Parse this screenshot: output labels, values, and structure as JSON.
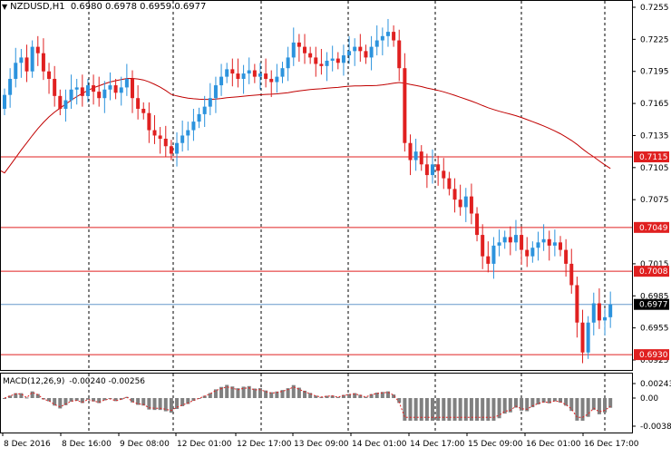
{
  "window": {
    "symbol": "NZDUSD,H1",
    "ohlc": "0.6980 0.6978 0.6959 0.6977"
  },
  "macd": {
    "title": "MACD(12,26,9)",
    "values": "-0.00240 -0.00256",
    "top_label": "0.00243",
    "zero_label": "0.00",
    "bottom_label": "-0.00384"
  },
  "colors": {
    "bull": "#2c93dd",
    "bear": "#e02020",
    "level_line": "#e02020",
    "ma_line": "#c00000",
    "current_price_line": "#6699cc",
    "macd_hist": "#808080",
    "macd_signal": "#e02020"
  },
  "price_axis": {
    "ticks": [
      "0.7255",
      "0.7225",
      "0.7195",
      "0.7165",
      "0.7135",
      "0.7105",
      "0.7075",
      "0.7015",
      "0.6985",
      "0.6955",
      "0.6925"
    ],
    "levels": [
      "0.7115",
      "0.7049",
      "0.7008",
      "0.6930"
    ],
    "current": "0.6977"
  },
  "time_axis": {
    "labels": [
      "8 Dec 2016",
      "8 Dec 16:00",
      "9 Dec 08:00",
      "12 Dec 01:00",
      "12 Dec 17:00",
      "13 Dec 09:00",
      "14 Dec 01:00",
      "14 Dec 17:00",
      "15 Dec 09:00",
      "16 Dec 01:00",
      "16 Dec 17:00"
    ]
  },
  "icons": {
    "menu": "triangle-down-icon"
  },
  "chart_data": {
    "type": "candlestick",
    "title": "NZDUSD,H1",
    "ylim": [
      0.6918,
      0.7268
    ],
    "moving_average_visible": true,
    "horizontal_levels": [
      0.7115,
      0.7049,
      0.7008,
      0.693
    ],
    "current_price": 0.6977,
    "grid": "vertical dashed",
    "closes": [
      0.7173,
      0.7188,
      0.7203,
      0.7208,
      0.7195,
      0.7218,
      0.7212,
      0.7195,
      0.7188,
      0.7172,
      0.716,
      0.7168,
      0.7178,
      0.718,
      0.7172,
      0.7182,
      0.7176,
      0.717,
      0.7178,
      0.7182,
      0.7175,
      0.718,
      0.7188,
      0.717,
      0.716,
      0.7156,
      0.714,
      0.7135,
      0.7132,
      0.7125,
      0.7118,
      0.7128,
      0.7135,
      0.714,
      0.7148,
      0.7155,
      0.7162,
      0.717,
      0.7182,
      0.719,
      0.7197,
      0.7193,
      0.7188,
      0.7193,
      0.7196,
      0.719,
      0.7193,
      0.7188,
      0.7185,
      0.719,
      0.7198,
      0.7208,
      0.7222,
      0.7218,
      0.7212,
      0.7208,
      0.7202,
      0.72,
      0.7205,
      0.7207,
      0.7203,
      0.721,
      0.7214,
      0.7218,
      0.7214,
      0.7208,
      0.7218,
      0.7224,
      0.7228,
      0.7232,
      0.7224,
      0.7198,
      0.7128,
      0.7112,
      0.712,
      0.7108,
      0.7098,
      0.7108,
      0.7102,
      0.7095,
      0.7085,
      0.7075,
      0.7068,
      0.7078,
      0.7062,
      0.7042,
      0.7022,
      0.7015,
      0.7032,
      0.7035,
      0.704,
      0.7035,
      0.7042,
      0.7028,
      0.7022,
      0.703,
      0.7035,
      0.7038,
      0.7032,
      0.7035,
      0.7028,
      0.7015,
      0.6995,
      0.696,
      0.6932,
      0.696,
      0.6978,
      0.6962,
      0.6965,
      0.6977
    ]
  }
}
